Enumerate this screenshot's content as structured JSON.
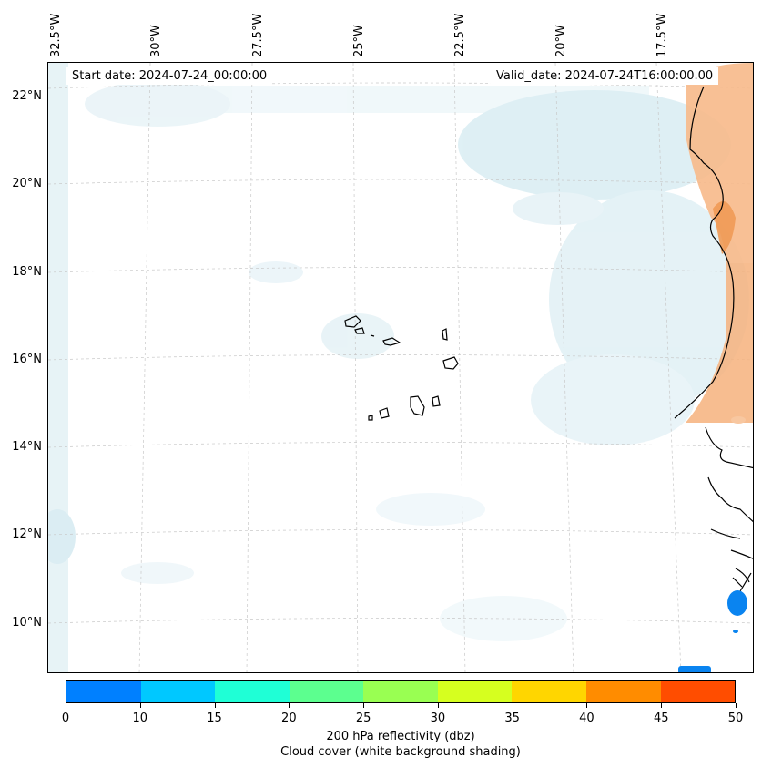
{
  "map": {
    "projection_labels": {
      "longitude": [
        "32.5°W",
        "30°W",
        "27.5°W",
        "25°W",
        "22.5°W",
        "20°W",
        "17.5°W"
      ],
      "latitude": [
        "22°N",
        "20°N",
        "18°N",
        "16°N",
        "14°N",
        "12°N",
        "10°N"
      ]
    },
    "start_date": "Start date: 2024-07-24_00:00:00",
    "valid_date": "Valid_date: 2024-07-24T16:00:00.00",
    "features": [
      "Cape Verde islands",
      "West African coastline (Mauritania, Senegal, Gambia, Guinea-Bissau)"
    ]
  },
  "colorbar": {
    "ticks": [
      "0",
      "10",
      "15",
      "20",
      "25",
      "30",
      "35",
      "40",
      "45",
      "50"
    ],
    "colors": [
      "#0080ff",
      "#00c8ff",
      "#1fffd6",
      "#5cff8f",
      "#99ff52",
      "#d6ff1f",
      "#ffd600",
      "#ff8c00",
      "#ff4d00"
    ],
    "label": "200 hPa reflectivity (dbz)",
    "sublabel": "Cloud cover (white background shading)"
  },
  "colors": {
    "cloud": "#d8ecf2",
    "land_shade": "#f5a66b",
    "grid": "#bbbbbb",
    "reflect_blue": "#0a84f0"
  }
}
